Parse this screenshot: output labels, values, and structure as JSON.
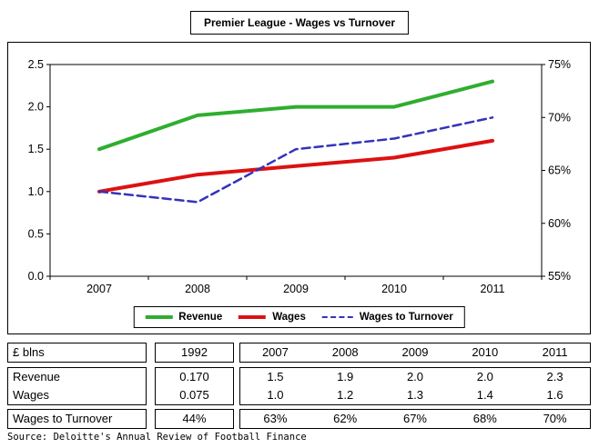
{
  "chart_data": {
    "type": "line",
    "title": "Premier League - Wages vs Turnover",
    "x": [
      "2007",
      "2008",
      "2009",
      "2010",
      "2011"
    ],
    "series": [
      {
        "name": "Revenue",
        "axis": "left",
        "color": "#2fae2f",
        "style": "solid",
        "values": [
          1.5,
          1.9,
          2.0,
          2.0,
          2.3
        ]
      },
      {
        "name": "Wages",
        "axis": "left",
        "color": "#dd1111",
        "style": "solid",
        "values": [
          1.0,
          1.2,
          1.3,
          1.4,
          1.6
        ]
      },
      {
        "name": "Wages to Turnover",
        "axis": "right",
        "color": "#3333bb",
        "style": "dashed",
        "values": [
          63,
          62,
          67,
          68,
          70
        ]
      }
    ],
    "axes": {
      "left": {
        "range": [
          0,
          2.5
        ],
        "ticks": [
          "0.0",
          "0.5",
          "1.0",
          "1.5",
          "2.0",
          "2.5"
        ]
      },
      "right": {
        "range": [
          55,
          75
        ],
        "ticks": [
          "55%",
          "60%",
          "65%",
          "70%",
          "75%"
        ]
      }
    },
    "grid": false,
    "legend_position": "bottom"
  },
  "table": {
    "unit_label": "£ blns",
    "base_year": "1992",
    "years": [
      "2007",
      "2008",
      "2009",
      "2010",
      "2011"
    ],
    "rows": [
      {
        "label": "Revenue",
        "base": "0.170",
        "values": [
          "1.5",
          "1.9",
          "2.0",
          "2.0",
          "2.3"
        ]
      },
      {
        "label": "Wages",
        "base": "0.075",
        "values": [
          "1.0",
          "1.2",
          "1.3",
          "1.4",
          "1.6"
        ]
      },
      {
        "label": "Wages to Turnover",
        "base": "44%",
        "values": [
          "63%",
          "62%",
          "67%",
          "68%",
          "70%"
        ]
      }
    ]
  },
  "source": "Source: Deloitte's Annual Review of Football Finance"
}
